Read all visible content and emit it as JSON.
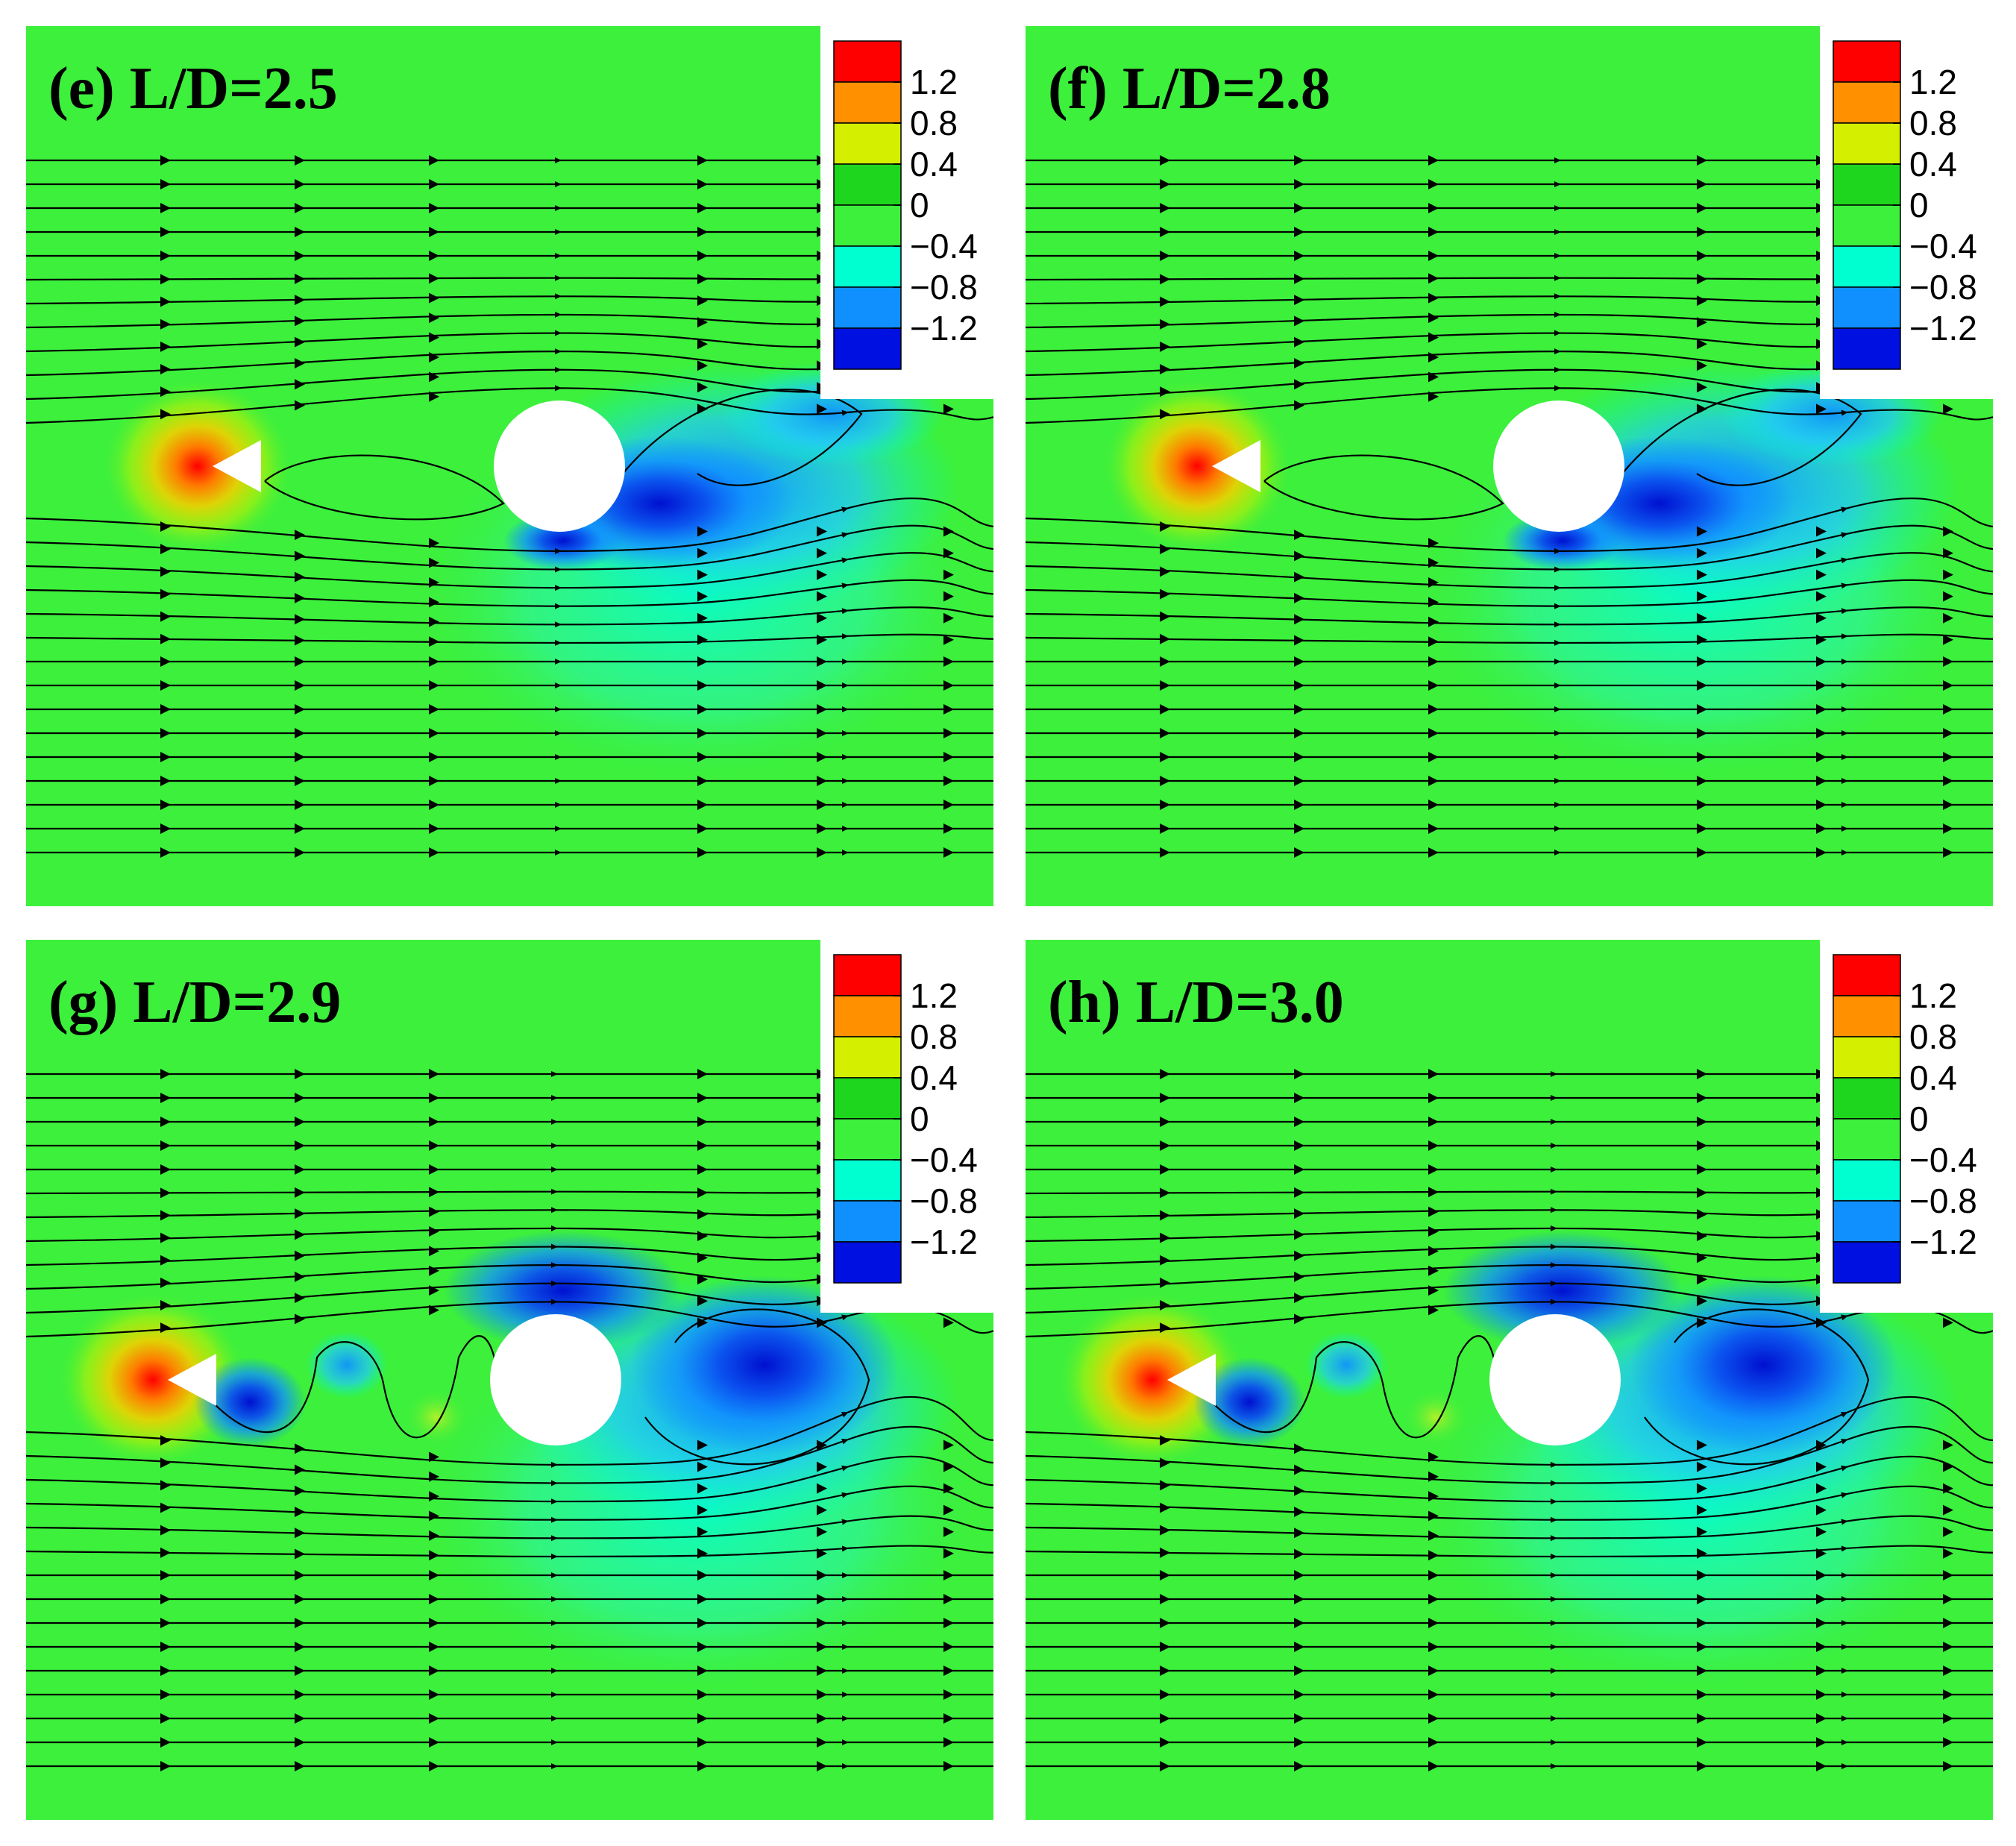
{
  "figure": {
    "panels": [
      {
        "id": "e",
        "title": "(e) L/D=2.5",
        "wake": "mild"
      },
      {
        "id": "f",
        "title": "(f) L/D=2.8",
        "wake": "mild"
      },
      {
        "id": "g",
        "title": "(g) L/D=2.9",
        "wake": "shedding"
      },
      {
        "id": "h",
        "title": "(h) L/D=3.0",
        "wake": "shedding"
      }
    ],
    "legend": {
      "levels": [
        "1.2",
        "0.8",
        "0.4",
        "0",
        "-0.4",
        "-0.8",
        "-1.2"
      ],
      "level_display": [
        "1.2",
        "0.8",
        "0.4",
        "0",
        "−0.4",
        "−0.8",
        "−1.2"
      ],
      "colors": [
        "#ff0000",
        "#ff9000",
        "#d4f000",
        "#1ed61e",
        "#3cf03c",
        "#00ffd0",
        "#1090ff",
        "#0010e0"
      ]
    },
    "colors": {
      "background": "#3cf03c",
      "streamline": "#000000",
      "body": "#ffffff"
    },
    "icons": [
      "triangle-body-icon",
      "circular-cylinder-icon"
    ]
  }
}
